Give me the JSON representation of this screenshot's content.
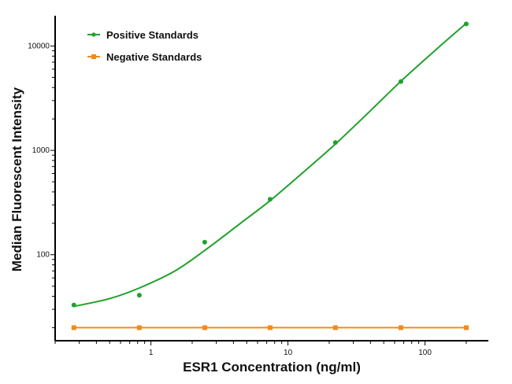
{
  "chart_data": {
    "type": "scatter",
    "title": "",
    "xlabel": "ESR1 Concentration (ng/ml)",
    "ylabel": "Median Fluorescent Intensity",
    "xscale": "log",
    "yscale": "log",
    "xlim": [
      0.2,
      290
    ],
    "ylim": [
      15,
      19500
    ],
    "xticks": [
      {
        "value": 1,
        "label": "1"
      },
      {
        "value": 10,
        "label": "10"
      },
      {
        "value": 100,
        "label": "100"
      }
    ],
    "yticks": [
      {
        "value": 100,
        "label": "100"
      },
      {
        "value": 1000,
        "label": "1000"
      },
      {
        "value": 10000,
        "label": "10000"
      }
    ],
    "grid": false,
    "legend_position": "top-left",
    "series": [
      {
        "name": "Positive Standards",
        "color": "#1fa22a",
        "marker": "circle",
        "x": [
          0.274,
          0.823,
          2.47,
          7.41,
          22.2,
          66.7,
          200
        ],
        "y": [
          33,
          41,
          132,
          340,
          1190,
          4570,
          16300
        ],
        "fit_curve": {
          "x": [
            0.274,
            0.5,
            0.823,
            1.5,
            2.47,
            4.5,
            7.41,
            13,
            22.2,
            40,
            66.7,
            120,
            200
          ],
          "y": [
            32,
            38,
            48,
            70,
            110,
            200,
            330,
            620,
            1150,
            2400,
            4600,
            9200,
            16500
          ]
        }
      },
      {
        "name": "Negative Standards",
        "color": "#f28a1e",
        "marker": "square",
        "x": [
          0.274,
          0.823,
          2.47,
          7.41,
          22.2,
          66.7,
          200
        ],
        "y": [
          20,
          20,
          20,
          20,
          20,
          20,
          20
        ]
      }
    ]
  }
}
